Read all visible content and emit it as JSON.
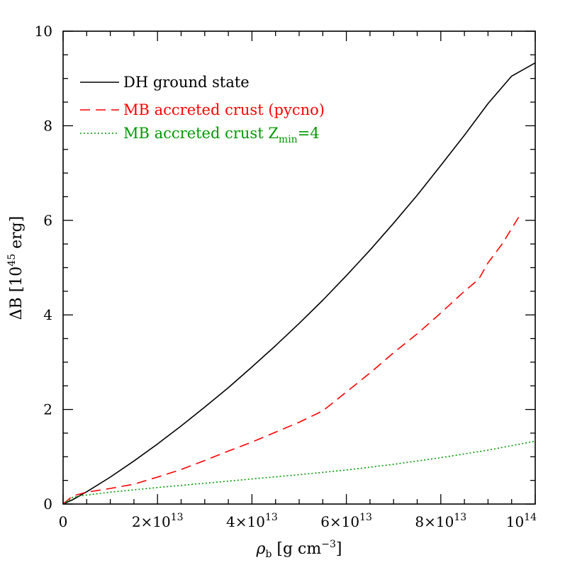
{
  "chart_data": {
    "type": "line",
    "title": "",
    "xlabel": "ρ",
    "xlabel_sub": "b",
    "xlabel_unit_open": " [g cm",
    "xlabel_unit_sup": "−3",
    "xlabel_unit_close": "]",
    "ylabel": "ΔB [10",
    "ylabel_sup": "45",
    "ylabel_close": " erg]",
    "xlim": [
      0,
      100000000000000.0
    ],
    "ylim": [
      0,
      10
    ],
    "grid": false,
    "legend_position": "top-left",
    "x_ticks": [
      {
        "value": 0,
        "mant": "0",
        "exp": ""
      },
      {
        "value": 20000000000000.0,
        "mant": "2×10",
        "exp": "13"
      },
      {
        "value": 40000000000000.0,
        "mant": "4×10",
        "exp": "13"
      },
      {
        "value": 60000000000000.0,
        "mant": "6×10",
        "exp": "13"
      },
      {
        "value": 80000000000000.0,
        "mant": "8×10",
        "exp": "13"
      },
      {
        "value": 100000000000000.0,
        "mant": "10",
        "exp": "14"
      }
    ],
    "y_ticks": [
      {
        "value": 0,
        "label": "0"
      },
      {
        "value": 2,
        "label": "2"
      },
      {
        "value": 4,
        "label": "4"
      },
      {
        "value": 6,
        "label": "6"
      },
      {
        "value": 8,
        "label": "8"
      },
      {
        "value": 10,
        "label": "10"
      }
    ],
    "series": [
      {
        "name": "DH ground state",
        "color": "#000000",
        "dash": "solid",
        "x": [
          0,
          2000000000000.0,
          5000000000000.0,
          10000000000000.0,
          15000000000000.0,
          20000000000000.0,
          25000000000000.0,
          30000000000000.0,
          35000000000000.0,
          40000000000000.0,
          45000000000000.0,
          50000000000000.0,
          55000000000000.0,
          60000000000000.0,
          65000000000000.0,
          70000000000000.0,
          75000000000000.0,
          80000000000000.0,
          85000000000000.0,
          90000000000000.0,
          95000000000000.0,
          100000000000000.0
        ],
        "y": [
          0,
          0.09,
          0.26,
          0.57,
          0.91,
          1.27,
          1.65,
          2.05,
          2.46,
          2.9,
          3.35,
          3.82,
          4.31,
          4.83,
          5.37,
          5.94,
          6.53,
          7.16,
          7.8,
          8.47,
          9.05,
          9.33
        ]
      },
      {
        "name": "MB accreted crust (pycno)",
        "color": "#ff0000",
        "dash": "dashed",
        "x": [
          0,
          2000000000000.0,
          5000000000000.0,
          10000000000000.0,
          15000000000000.0,
          20000000000000.0,
          25000000000000.0,
          30000000000000.0,
          35000000000000.0,
          40000000000000.0,
          45000000000000.0,
          50000000000000.0,
          55000000000000.0,
          60000000000000.0,
          65000000000000.0,
          70000000000000.0,
          75000000000000.0,
          80000000000000.0,
          85000000000000.0,
          88000000000000.0,
          90000000000000.0,
          93000000000000.0,
          97000000000000.0
        ],
        "y": [
          0,
          0.17,
          0.25,
          0.33,
          0.42,
          0.57,
          0.73,
          0.92,
          1.12,
          1.31,
          1.52,
          1.73,
          1.97,
          2.37,
          2.77,
          3.2,
          3.6,
          4.04,
          4.5,
          4.75,
          5.1,
          5.5,
          6.15
        ]
      },
      {
        "name": "MB accreted crust Z",
        "name_sub": "min",
        "name_tail": "=4",
        "color": "#009900",
        "dash": "dotted",
        "x": [
          0,
          2000000000000.0,
          5000000000000.0,
          10000000000000.0,
          15000000000000.0,
          20000000000000.0,
          30000000000000.0,
          40000000000000.0,
          50000000000000.0,
          60000000000000.0,
          70000000000000.0,
          80000000000000.0,
          90000000000000.0,
          100000000000000.0
        ],
        "y": [
          0,
          0.14,
          0.19,
          0.25,
          0.3,
          0.35,
          0.44,
          0.53,
          0.62,
          0.72,
          0.84,
          0.98,
          1.14,
          1.33
        ]
      }
    ]
  }
}
